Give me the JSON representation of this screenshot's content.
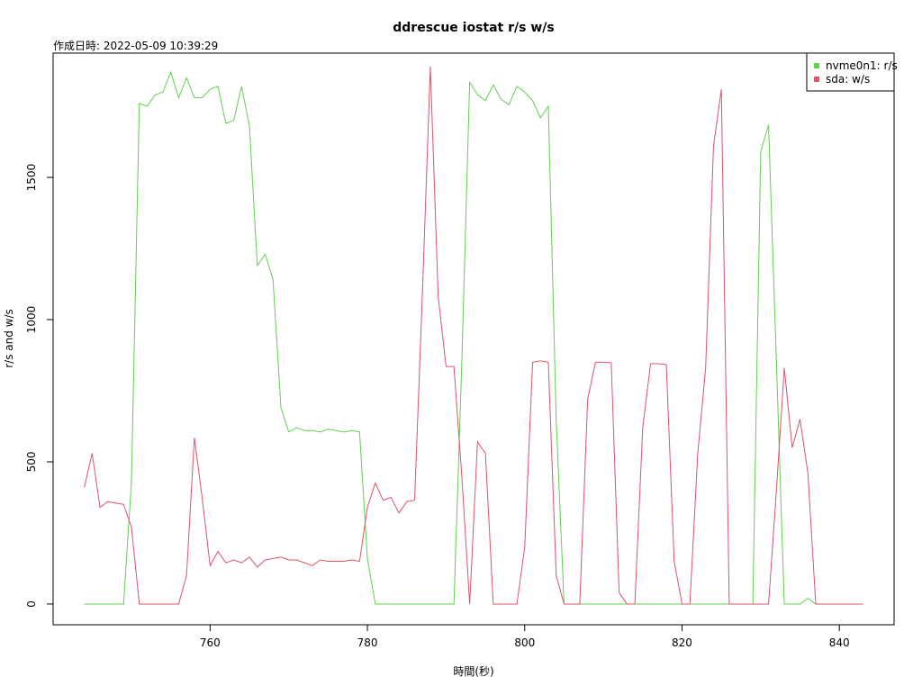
{
  "chart_data": {
    "type": "line",
    "title": "ddrescue iostat r/s w/s",
    "subtitle": "作成日時: 2022-05-09 10:39:29",
    "x_label": "時間(秒)",
    "y_label": "r/s and w/s",
    "x": [
      744,
      745,
      746,
      747,
      748,
      749,
      750,
      751,
      752,
      753,
      754,
      755,
      756,
      757,
      758,
      759,
      760,
      761,
      762,
      763,
      764,
      765,
      766,
      767,
      768,
      769,
      770,
      771,
      772,
      773,
      774,
      775,
      776,
      777,
      778,
      779,
      780,
      781,
      782,
      783,
      784,
      785,
      786,
      787,
      788,
      789,
      790,
      791,
      792,
      793,
      794,
      795,
      796,
      797,
      798,
      799,
      800,
      801,
      802,
      803,
      804,
      805,
      806,
      807,
      808,
      809,
      810,
      811,
      812,
      813,
      814,
      815,
      816,
      817,
      818,
      819,
      820,
      821,
      822,
      823,
      824,
      825,
      826,
      827,
      828,
      829,
      830,
      831,
      832,
      833,
      834,
      835,
      836,
      837,
      838,
      839,
      840,
      841,
      842,
      843
    ],
    "series": [
      {
        "name": "nvme0n1: r/s",
        "color": "#61D04F",
        "values": [
          0,
          0,
          0,
          0,
          0,
          0,
          430,
          1760,
          1750,
          1790,
          1800,
          1870,
          1780,
          1850,
          1780,
          1780,
          1810,
          1820,
          1690,
          1700,
          1820,
          1680,
          1190,
          1230,
          1140,
          690,
          605,
          620,
          610,
          610,
          605,
          615,
          610,
          605,
          610,
          605,
          160,
          0,
          0,
          0,
          0,
          0,
          0,
          0,
          0,
          0,
          0,
          0,
          850,
          1835,
          1790,
          1770,
          1825,
          1775,
          1755,
          1820,
          1800,
          1770,
          1710,
          1750,
          650,
          0,
          0,
          0,
          0,
          0,
          0,
          0,
          0,
          0,
          0,
          0,
          0,
          0,
          0,
          0,
          0,
          0,
          0,
          0,
          0,
          0,
          0,
          0,
          0,
          0,
          1590,
          1685,
          850,
          0,
          0,
          0,
          20,
          0,
          0,
          0,
          0,
          0,
          0,
          0
        ]
      },
      {
        "name": "sda: w/s",
        "color": "#DF536B",
        "values": [
          410,
          530,
          340,
          360,
          355,
          350,
          270,
          0,
          0,
          0,
          0,
          0,
          0,
          100,
          585,
          370,
          135,
          185,
          145,
          155,
          145,
          165,
          130,
          155,
          160,
          165,
          155,
          155,
          145,
          135,
          155,
          150,
          150,
          150,
          155,
          150,
          340,
          425,
          365,
          375,
          320,
          360,
          365,
          1100,
          1890,
          1080,
          835,
          835,
          450,
          0,
          570,
          530,
          0,
          0,
          0,
          0,
          200,
          850,
          855,
          850,
          100,
          0,
          0,
          0,
          720,
          850,
          850,
          848,
          40,
          0,
          0,
          620,
          845,
          845,
          842,
          150,
          0,
          0,
          530,
          830,
          1610,
          1810,
          0,
          0,
          0,
          0,
          0,
          0,
          400,
          830,
          550,
          650,
          460,
          0,
          0,
          0,
          0,
          0,
          0,
          0
        ]
      }
    ],
    "xlim": [
      740.04,
      846.96
    ],
    "ylim": [
      -73,
      1937
    ],
    "xticks": [
      760,
      780,
      800,
      820,
      840
    ],
    "yticks": [
      0,
      500,
      1000,
      1500
    ],
    "legend": "top-right"
  }
}
